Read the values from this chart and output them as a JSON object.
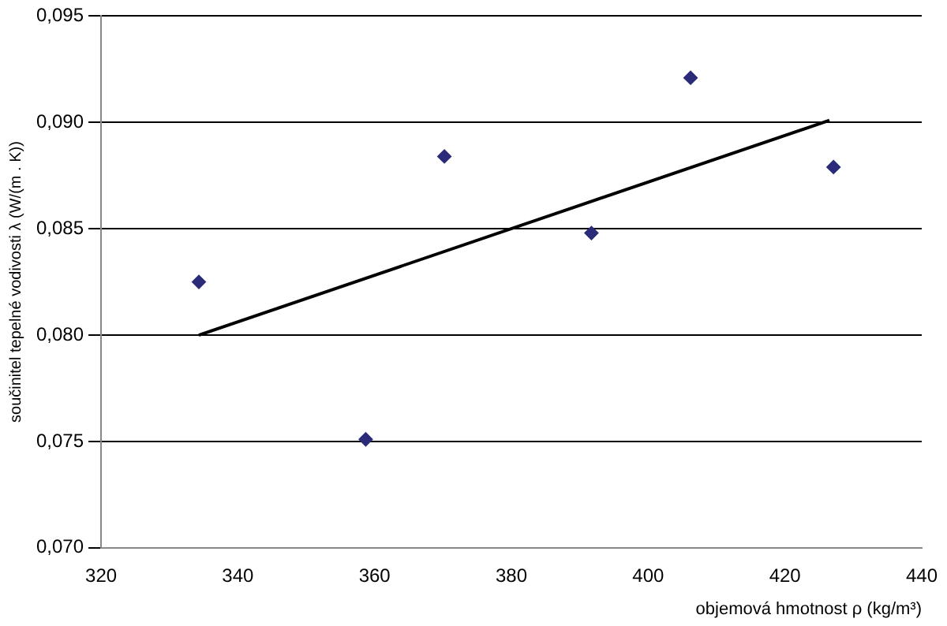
{
  "chart_data": {
    "type": "scatter",
    "xlabel": "objemová hmotnost ρ (kg/m³)",
    "ylabel": "součinitel tepelné vodivosti λ (W/(m . K))",
    "series": [
      {
        "color": "#2b2b7a",
        "marker": "diamond",
        "x": [
          334.3,
          358.7,
          370.2,
          391.7,
          406.2,
          427.1
        ],
        "values": [
          0.0825,
          0.0751,
          0.0884,
          0.0848,
          0.0921,
          0.0879
        ]
      },
      {
        "type": "line",
        "color": "#000000",
        "marker": "none",
        "x": [
          334.3,
          426.5
        ],
        "values": [
          0.08,
          0.0901
        ]
      }
    ],
    "xlim": [
      320,
      440
    ],
    "xticks": [
      320,
      340,
      360,
      380,
      400,
      420,
      440
    ],
    "ylim": [
      0.07,
      0.095
    ],
    "yticks": [
      {
        "value": 0.07,
        "label": "0,070"
      },
      {
        "value": 0.075,
        "label": "0,075"
      },
      {
        "value": 0.08,
        "label": "0,080"
      },
      {
        "value": 0.085,
        "label": "0,085"
      },
      {
        "value": 0.09,
        "label": "0,090"
      },
      {
        "value": 0.095,
        "label": "0,095"
      }
    ],
    "grid": "y",
    "legend": false
  }
}
